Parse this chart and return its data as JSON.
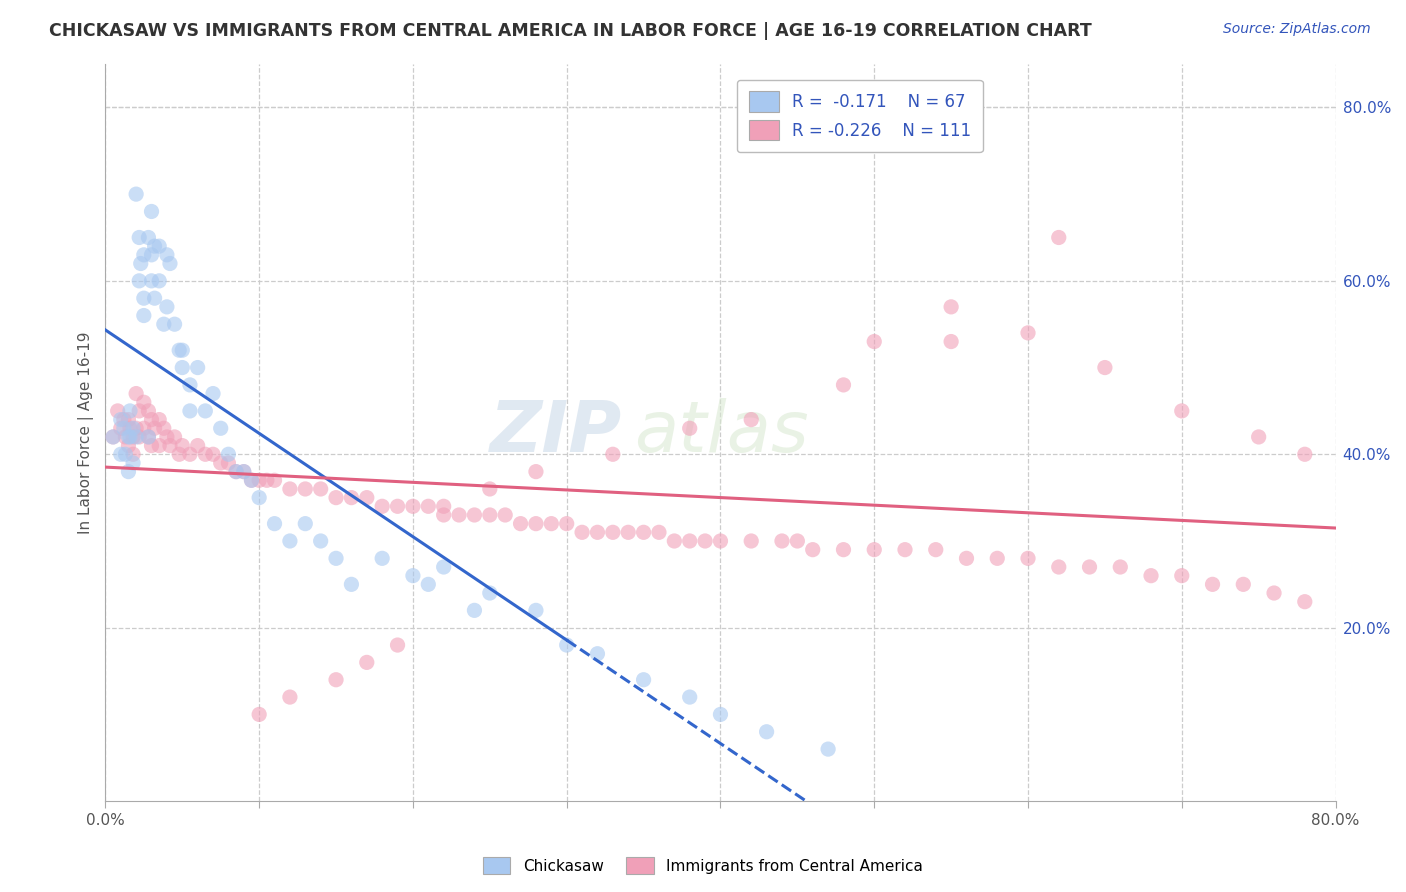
{
  "title": "CHICKASAW VS IMMIGRANTS FROM CENTRAL AMERICA IN LABOR FORCE | AGE 16-19 CORRELATION CHART",
  "source": "Source: ZipAtlas.com",
  "ylabel": "In Labor Force | Age 16-19",
  "xlim": [
    0.0,
    0.8
  ],
  "ylim": [
    0.0,
    0.85
  ],
  "xticks": [
    0.0,
    0.1,
    0.2,
    0.3,
    0.4,
    0.5,
    0.6,
    0.7,
    0.8
  ],
  "xtick_labels": [
    "0.0%",
    "",
    "",
    "",
    "",
    "",
    "",
    "",
    "80.0%"
  ],
  "ytick_labels_right": [
    "20.0%",
    "40.0%",
    "60.0%",
    "80.0%"
  ],
  "ytick_values_right": [
    0.2,
    0.4,
    0.6,
    0.8
  ],
  "legend_r1": "R =  -0.171",
  "legend_n1": "N = 67",
  "legend_r2": "R = -0.226",
  "legend_n2": "N = 111",
  "color_chickasaw": "#a8c8f0",
  "color_immigrants": "#f0a0b8",
  "color_blue_text": "#3355bb",
  "color_line_blue": "#3366cc",
  "color_line_pink": "#e06080",
  "watermark_zip": "ZIP",
  "watermark_atlas": "atlas",
  "chickasaw_x": [
    0.005,
    0.01,
    0.01,
    0.012,
    0.013,
    0.015,
    0.015,
    0.016,
    0.016,
    0.018,
    0.018,
    0.02,
    0.02,
    0.022,
    0.022,
    0.023,
    0.025,
    0.025,
    0.025,
    0.028,
    0.028,
    0.03,
    0.03,
    0.03,
    0.032,
    0.032,
    0.035,
    0.035,
    0.038,
    0.04,
    0.04,
    0.042,
    0.045,
    0.048,
    0.05,
    0.05,
    0.055,
    0.055,
    0.06,
    0.065,
    0.07,
    0.075,
    0.08,
    0.085,
    0.09,
    0.095,
    0.1,
    0.11,
    0.12,
    0.13,
    0.14,
    0.15,
    0.16,
    0.18,
    0.2,
    0.21,
    0.22,
    0.24,
    0.25,
    0.28,
    0.3,
    0.32,
    0.35,
    0.38,
    0.4,
    0.43,
    0.47
  ],
  "chickasaw_y": [
    0.42,
    0.44,
    0.4,
    0.43,
    0.4,
    0.42,
    0.38,
    0.45,
    0.42,
    0.43,
    0.39,
    0.7,
    0.42,
    0.65,
    0.6,
    0.62,
    0.63,
    0.58,
    0.56,
    0.65,
    0.42,
    0.68,
    0.63,
    0.6,
    0.64,
    0.58,
    0.64,
    0.6,
    0.55,
    0.63,
    0.57,
    0.62,
    0.55,
    0.52,
    0.52,
    0.5,
    0.48,
    0.45,
    0.5,
    0.45,
    0.47,
    0.43,
    0.4,
    0.38,
    0.38,
    0.37,
    0.35,
    0.32,
    0.3,
    0.32,
    0.3,
    0.28,
    0.25,
    0.28,
    0.26,
    0.25,
    0.27,
    0.22,
    0.24,
    0.22,
    0.18,
    0.17,
    0.14,
    0.12,
    0.1,
    0.08,
    0.06
  ],
  "immigrants_x": [
    0.005,
    0.008,
    0.01,
    0.012,
    0.013,
    0.015,
    0.015,
    0.016,
    0.018,
    0.018,
    0.02,
    0.02,
    0.022,
    0.022,
    0.025,
    0.025,
    0.028,
    0.028,
    0.03,
    0.03,
    0.032,
    0.035,
    0.035,
    0.038,
    0.04,
    0.042,
    0.045,
    0.048,
    0.05,
    0.055,
    0.06,
    0.065,
    0.07,
    0.075,
    0.08,
    0.085,
    0.09,
    0.095,
    0.1,
    0.105,
    0.11,
    0.12,
    0.13,
    0.14,
    0.15,
    0.16,
    0.17,
    0.18,
    0.19,
    0.2,
    0.21,
    0.22,
    0.23,
    0.24,
    0.25,
    0.26,
    0.27,
    0.28,
    0.29,
    0.3,
    0.31,
    0.32,
    0.33,
    0.34,
    0.35,
    0.36,
    0.37,
    0.38,
    0.39,
    0.4,
    0.42,
    0.44,
    0.45,
    0.46,
    0.48,
    0.5,
    0.52,
    0.54,
    0.56,
    0.58,
    0.6,
    0.62,
    0.64,
    0.66,
    0.68,
    0.7,
    0.72,
    0.74,
    0.76,
    0.78,
    0.5,
    0.55,
    0.6,
    0.65,
    0.7,
    0.75,
    0.78,
    0.62,
    0.55,
    0.48,
    0.42,
    0.38,
    0.33,
    0.28,
    0.25,
    0.22,
    0.19,
    0.17,
    0.15,
    0.12,
    0.1
  ],
  "immigrants_y": [
    0.42,
    0.45,
    0.43,
    0.44,
    0.42,
    0.44,
    0.41,
    0.43,
    0.42,
    0.4,
    0.47,
    0.43,
    0.45,
    0.42,
    0.46,
    0.43,
    0.45,
    0.42,
    0.44,
    0.41,
    0.43,
    0.44,
    0.41,
    0.43,
    0.42,
    0.41,
    0.42,
    0.4,
    0.41,
    0.4,
    0.41,
    0.4,
    0.4,
    0.39,
    0.39,
    0.38,
    0.38,
    0.37,
    0.37,
    0.37,
    0.37,
    0.36,
    0.36,
    0.36,
    0.35,
    0.35,
    0.35,
    0.34,
    0.34,
    0.34,
    0.34,
    0.33,
    0.33,
    0.33,
    0.33,
    0.33,
    0.32,
    0.32,
    0.32,
    0.32,
    0.31,
    0.31,
    0.31,
    0.31,
    0.31,
    0.31,
    0.3,
    0.3,
    0.3,
    0.3,
    0.3,
    0.3,
    0.3,
    0.29,
    0.29,
    0.29,
    0.29,
    0.29,
    0.28,
    0.28,
    0.28,
    0.27,
    0.27,
    0.27,
    0.26,
    0.26,
    0.25,
    0.25,
    0.24,
    0.23,
    0.53,
    0.53,
    0.54,
    0.5,
    0.45,
    0.42,
    0.4,
    0.65,
    0.57,
    0.48,
    0.44,
    0.43,
    0.4,
    0.38,
    0.36,
    0.34,
    0.18,
    0.16,
    0.14,
    0.12,
    0.1
  ]
}
